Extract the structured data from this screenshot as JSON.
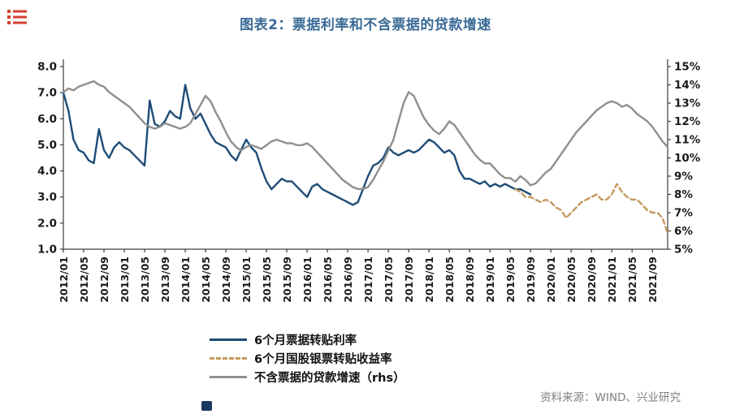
{
  "page": {
    "title": "图表2：票据利率和不含票据的贷款增速",
    "source": "资料来源：WIND、兴业研究"
  },
  "legend": {
    "items": [
      {
        "label": "6个月票据转贴利率",
        "color": "#1d4c77",
        "style": "solid"
      },
      {
        "label": "6个月国股银票转贴收益率",
        "color": "#c49a5f",
        "style": "dashed"
      },
      {
        "label": "不含票据的贷款增速（rhs）",
        "color": "#8f8f8f",
        "style": "solid"
      }
    ]
  },
  "chart_data": {
    "type": "line",
    "title": "图表2：票据利率和不含票据的贷款增速",
    "xlabel": "",
    "ylabel_left": "",
    "ylabel_right": "",
    "grid": false,
    "legend_position": "bottom",
    "left_axis": {
      "min": 1,
      "max": 8,
      "ticks": [
        "8.0",
        "7.0",
        "6.0",
        "5.0",
        "4.0",
        "3.0",
        "2.0",
        "1.0"
      ]
    },
    "right_axis": {
      "min": 5,
      "max": 15,
      "ticks": [
        "15%",
        "14%",
        "13%",
        "12%",
        "11%",
        "10%",
        "9%",
        "8%",
        "7%",
        "6%",
        "5%"
      ]
    },
    "x_tick_labels": [
      "2012/01",
      "2012/05",
      "2012/09",
      "2013/01",
      "2013/05",
      "2013/09",
      "2014/01",
      "2014/05",
      "2014/09",
      "2015/01",
      "2015/05",
      "2015/09",
      "2016/01",
      "2016/05",
      "2016/09",
      "2017/01",
      "2017/05",
      "2017/09",
      "2018/01",
      "2018/05",
      "2018/09",
      "2019/01",
      "2019/05",
      "2019/09",
      "2020/01",
      "2020/05",
      "2020/09",
      "2021/01",
      "2021/05",
      "2021/09"
    ],
    "x": [
      "2012/01",
      "2012/02",
      "2012/03",
      "2012/04",
      "2012/05",
      "2012/06",
      "2012/07",
      "2012/08",
      "2012/09",
      "2012/10",
      "2012/11",
      "2012/12",
      "2013/01",
      "2013/02",
      "2013/03",
      "2013/04",
      "2013/05",
      "2013/06",
      "2013/07",
      "2013/08",
      "2013/09",
      "2013/10",
      "2013/11",
      "2013/12",
      "2014/01",
      "2014/02",
      "2014/03",
      "2014/04",
      "2014/05",
      "2014/06",
      "2014/07",
      "2014/08",
      "2014/09",
      "2014/10",
      "2014/11",
      "2014/12",
      "2015/01",
      "2015/02",
      "2015/03",
      "2015/04",
      "2015/05",
      "2015/06",
      "2015/07",
      "2015/08",
      "2015/09",
      "2015/10",
      "2015/11",
      "2015/12",
      "2016/01",
      "2016/02",
      "2016/03",
      "2016/04",
      "2016/05",
      "2016/06",
      "2016/07",
      "2016/08",
      "2016/09",
      "2016/10",
      "2016/11",
      "2016/12",
      "2017/01",
      "2017/02",
      "2017/03",
      "2017/04",
      "2017/05",
      "2017/06",
      "2017/07",
      "2017/08",
      "2017/09",
      "2017/10",
      "2017/11",
      "2017/12",
      "2018/01",
      "2018/02",
      "2018/03",
      "2018/04",
      "2018/05",
      "2018/06",
      "2018/07",
      "2018/08",
      "2018/09",
      "2018/10",
      "2018/11",
      "2018/12",
      "2019/01",
      "2019/02",
      "2019/03",
      "2019/04",
      "2019/05",
      "2019/06",
      "2019/07",
      "2019/08",
      "2019/09",
      "2019/10",
      "2019/11",
      "2019/12",
      "2020/01",
      "2020/02",
      "2020/03",
      "2020/04",
      "2020/05",
      "2020/06",
      "2020/07",
      "2020/08",
      "2020/09",
      "2020/10",
      "2020/11",
      "2020/12",
      "2021/01",
      "2021/02",
      "2021/03",
      "2021/04",
      "2021/05",
      "2021/06",
      "2021/07",
      "2021/08",
      "2021/09",
      "2021/10",
      "2021/11",
      "2021/12"
    ],
    "series": [
      {
        "name": "6个月票据转贴利率",
        "axis": "left",
        "color": "#1d4c77",
        "dash": null,
        "values": [
          7.0,
          6.3,
          5.2,
          4.8,
          4.7,
          4.4,
          4.3,
          5.6,
          4.8,
          4.5,
          4.9,
          5.1,
          4.9,
          4.8,
          4.6,
          4.4,
          4.2,
          6.7,
          5.8,
          5.7,
          5.9,
          6.3,
          6.1,
          6.0,
          7.3,
          6.4,
          6.0,
          6.2,
          5.8,
          5.4,
          5.1,
          5.0,
          4.9,
          4.6,
          4.4,
          4.8,
          5.2,
          4.9,
          4.7,
          4.1,
          3.6,
          3.3,
          3.5,
          3.7,
          3.6,
          3.6,
          3.4,
          3.2,
          3.0,
          3.4,
          3.5,
          3.3,
          3.2,
          3.1,
          3.0,
          2.9,
          2.8,
          2.7,
          2.8,
          3.3,
          3.8,
          4.2,
          4.3,
          4.5,
          4.9,
          4.7,
          4.6,
          4.7,
          4.8,
          4.7,
          4.8,
          5.0,
          5.2,
          5.1,
          4.9,
          4.7,
          4.8,
          4.6,
          4.0,
          3.7,
          3.7,
          3.6,
          3.5,
          3.6,
          3.4,
          3.5,
          3.4,
          3.5,
          3.4,
          3.3,
          3.3,
          3.2,
          3.1,
          null,
          null,
          null,
          null,
          null,
          null,
          null,
          null,
          null,
          null,
          null,
          null,
          null,
          null,
          null,
          null,
          null,
          null,
          null,
          null,
          null,
          null,
          null,
          null,
          null,
          null,
          null
        ]
      },
      {
        "name": "6个月国股银票转贴收益率",
        "axis": "left",
        "color": "#c49a5f",
        "dash": "6,4",
        "values": [
          null,
          null,
          null,
          null,
          null,
          null,
          null,
          null,
          null,
          null,
          null,
          null,
          null,
          null,
          null,
          null,
          null,
          null,
          null,
          null,
          null,
          null,
          null,
          null,
          null,
          null,
          null,
          null,
          null,
          null,
          null,
          null,
          null,
          null,
          null,
          null,
          null,
          null,
          null,
          null,
          null,
          null,
          null,
          null,
          null,
          null,
          null,
          null,
          null,
          null,
          null,
          null,
          null,
          null,
          null,
          null,
          null,
          null,
          null,
          null,
          null,
          null,
          null,
          null,
          null,
          null,
          null,
          null,
          null,
          null,
          null,
          null,
          null,
          null,
          null,
          null,
          null,
          null,
          null,
          null,
          null,
          null,
          null,
          null,
          null,
          null,
          null,
          null,
          null,
          3.3,
          3.2,
          3.0,
          3.0,
          2.9,
          2.8,
          2.9,
          2.8,
          2.6,
          2.5,
          2.2,
          2.4,
          2.6,
          2.8,
          2.9,
          3.0,
          3.1,
          2.9,
          2.9,
          3.1,
          3.5,
          3.2,
          3.0,
          2.9,
          2.9,
          2.7,
          2.5,
          2.4,
          2.4,
          2.2,
          1.6
        ]
      },
      {
        "name": "不含票据的贷款增速（rhs）",
        "axis": "right",
        "color": "#8f8f8f",
        "dash": null,
        "values": [
          13.6,
          13.8,
          13.7,
          13.9,
          14.0,
          14.1,
          14.2,
          14.0,
          13.9,
          13.6,
          13.4,
          13.2,
          13.0,
          12.8,
          12.5,
          12.2,
          11.9,
          11.7,
          11.6,
          11.7,
          11.9,
          11.8,
          11.7,
          11.6,
          11.7,
          11.9,
          12.4,
          12.9,
          13.4,
          13.1,
          12.5,
          12.0,
          11.4,
          10.9,
          10.6,
          10.4,
          10.6,
          10.7,
          10.6,
          10.5,
          10.7,
          10.9,
          11.0,
          10.9,
          10.8,
          10.8,
          10.7,
          10.7,
          10.8,
          10.6,
          10.3,
          10.0,
          9.7,
          9.4,
          9.1,
          8.8,
          8.6,
          8.4,
          8.3,
          8.3,
          8.4,
          8.8,
          9.3,
          9.8,
          10.4,
          11.0,
          12.0,
          13.0,
          13.6,
          13.4,
          12.8,
          12.2,
          11.8,
          11.5,
          11.3,
          11.6,
          12.0,
          11.8,
          11.4,
          11.0,
          10.6,
          10.2,
          9.9,
          9.7,
          9.7,
          9.4,
          9.1,
          8.9,
          8.9,
          8.7,
          9.0,
          8.8,
          8.5,
          8.6,
          8.9,
          9.2,
          9.4,
          9.8,
          10.2,
          10.6,
          11.0,
          11.4,
          11.7,
          12.0,
          12.3,
          12.6,
          12.8,
          13.0,
          13.1,
          13.0,
          12.8,
          12.9,
          12.7,
          12.4,
          12.2,
          12.0,
          11.7,
          11.3,
          10.9,
          10.6
        ]
      }
    ]
  }
}
